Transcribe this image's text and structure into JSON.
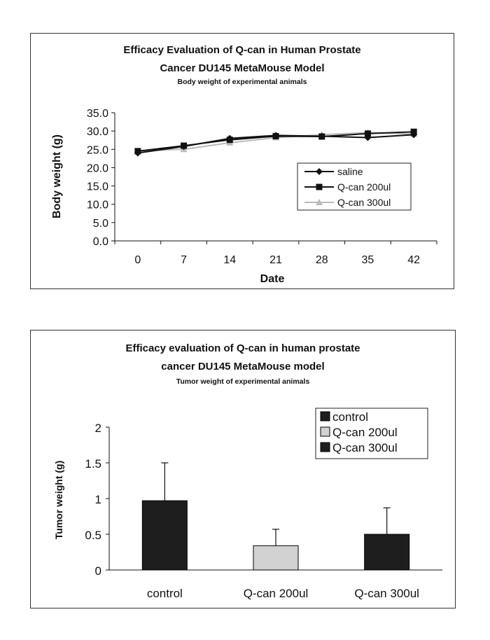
{
  "chart_data": [
    {
      "type": "line",
      "title": "Efficacy Evaluation of Q-can in Human Prostate",
      "title_line2": "Cancer DU145 MetaMouse Model",
      "subtitle": "Body weight of experimental animals",
      "xlabel": "Date",
      "ylabel": "Body weight (g)",
      "categories": [
        "0",
        "7",
        "14",
        "21",
        "28",
        "35",
        "42"
      ],
      "y_ticks": [
        "0.0",
        "5.0",
        "10.0",
        "15.0",
        "20.0",
        "25.0",
        "30.0",
        "35.0"
      ],
      "ylim": [
        0,
        35
      ],
      "grid": false,
      "legend_position": "right",
      "series": [
        {
          "name": "saline",
          "marker": "diamond",
          "color": "#111111",
          "values": [
            24.0,
            25.8,
            28.0,
            28.8,
            28.6,
            28.2,
            29.0
          ]
        },
        {
          "name": "Q-can 200ul",
          "marker": "square",
          "color": "#111111",
          "values": [
            24.5,
            26.0,
            27.6,
            28.6,
            28.5,
            29.3,
            29.8
          ]
        },
        {
          "name": "Q-can 300ul",
          "marker": "triangle",
          "color": "#bbbbbb",
          "values": [
            24.6,
            25.0,
            26.8,
            28.2,
            29.0,
            29.6,
            29.2
          ]
        }
      ]
    },
    {
      "type": "bar",
      "title": "Efficacy evaluation of Q-can in human prostate",
      "title_line2": "cancer DU145 MetaMouse model",
      "subtitle": "Tumor weight of experimental animals",
      "xlabel": "",
      "ylabel": "Tumor weight (g)",
      "categories": [
        "control",
        "Q-can 200ul",
        "Q-can 300ul"
      ],
      "values": [
        0.97,
        0.34,
        0.5
      ],
      "errors": [
        0.53,
        0.23,
        0.37
      ],
      "colors": [
        "#1e1e1e",
        "#d2d2d2",
        "#1e1e1e"
      ],
      "y_ticks": [
        "0",
        "0.5",
        "1",
        "1.5",
        "2"
      ],
      "ylim": [
        0,
        2
      ],
      "grid": false,
      "legend_position": "top-right",
      "legend": [
        "control",
        "Q-can 200ul",
        "Q-can 300ul"
      ]
    }
  ]
}
